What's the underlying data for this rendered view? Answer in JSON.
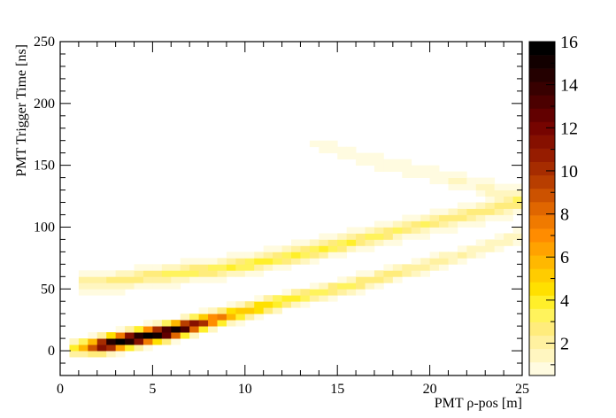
{
  "chart_data": {
    "type": "heatmap",
    "xlabel": "PMT ρ-pos [m]",
    "ylabel": "PMT Trigger Time [ns]",
    "xlim": [
      0,
      25
    ],
    "ylim": [
      -20,
      250
    ],
    "x_ticks": [
      "0",
      "5",
      "10",
      "15",
      "20",
      "25"
    ],
    "y_ticks": [
      "0",
      "50",
      "100",
      "150",
      "200",
      "250"
    ],
    "grid": false,
    "bin_size": {
      "x": 0.5,
      "y": 5
    },
    "colorbar": {
      "range": [
        0.5,
        16
      ],
      "ticks": [
        "2",
        "4",
        "6",
        "8",
        "10",
        "12",
        "14",
        "16"
      ],
      "palette": [
        "#fffbe0",
        "#fff6c0",
        "#fff1a0",
        "#ffec7c",
        "#fff35c",
        "#ffef2a",
        "#ffe000",
        "#ffcc00",
        "#ffb800",
        "#ffa200",
        "#ff8c00",
        "#f07a00",
        "#e06600",
        "#cc5200",
        "#b83e00",
        "#a62c00",
        "#961c00",
        "#861000",
        "#760400",
        "#620000",
        "#4c0000",
        "#380000",
        "#240000",
        "#120000",
        "#000000"
      ]
    },
    "bands": [
      {
        "name": "lower",
        "points": [
          [
            0.5,
            2
          ],
          [
            2,
            4
          ],
          [
            4,
            10
          ],
          [
            6,
            16
          ],
          [
            8,
            24
          ],
          [
            10,
            32
          ],
          [
            12,
            40
          ],
          [
            14,
            47
          ],
          [
            16,
            54
          ],
          [
            18,
            62
          ],
          [
            20,
            70
          ],
          [
            22,
            79
          ],
          [
            24,
            88
          ],
          [
            25,
            94
          ]
        ],
        "sigma": 4,
        "peak": [
          [
            0.5,
            3
          ],
          [
            1.5,
            7
          ],
          [
            2.5,
            15
          ],
          [
            3.5,
            16
          ],
          [
            4.5,
            16
          ],
          [
            5.5,
            16
          ],
          [
            6.5,
            15
          ],
          [
            7.5,
            11
          ],
          [
            8.5,
            8
          ],
          [
            9.5,
            6
          ],
          [
            11,
            5
          ],
          [
            13,
            3.5
          ],
          [
            16,
            3
          ],
          [
            20,
            2
          ],
          [
            25,
            1.5
          ]
        ]
      },
      {
        "name": "upper",
        "points": [
          [
            1,
            56
          ],
          [
            3,
            57
          ],
          [
            5,
            61
          ],
          [
            7,
            64
          ],
          [
            9,
            67
          ],
          [
            11,
            72
          ],
          [
            13,
            78
          ],
          [
            15,
            85
          ],
          [
            17,
            93
          ],
          [
            19,
            100
          ],
          [
            21,
            107
          ],
          [
            23,
            113
          ],
          [
            25,
            120
          ]
        ],
        "sigma": 3.5,
        "peak": [
          [
            1,
            1.4
          ],
          [
            3,
            1.8
          ],
          [
            6,
            2.4
          ],
          [
            9,
            2.8
          ],
          [
            12,
            3
          ],
          [
            15,
            3
          ],
          [
            18,
            2.5
          ],
          [
            21,
            2.2
          ],
          [
            25,
            2
          ]
        ]
      },
      {
        "name": "halo",
        "points": [
          [
            1,
            52
          ],
          [
            5,
            58
          ],
          [
            10,
            70
          ],
          [
            15,
            86
          ],
          [
            20,
            102
          ],
          [
            25,
            118
          ]
        ],
        "sigma": 9,
        "peak": [
          [
            1,
            0.7
          ],
          [
            10,
            0.9
          ],
          [
            18,
            0.8
          ],
          [
            25,
            0.7
          ]
        ]
      },
      {
        "name": "reflected",
        "points": [
          [
            13.5,
            168
          ],
          [
            16,
            158
          ],
          [
            18,
            150
          ],
          [
            20,
            143
          ],
          [
            22,
            136
          ],
          [
            24,
            128
          ],
          [
            25,
            124
          ]
        ],
        "sigma": 5,
        "peak": [
          [
            13.5,
            0.6
          ],
          [
            16,
            0.9
          ],
          [
            20,
            1.1
          ],
          [
            25,
            1.3
          ]
        ]
      }
    ]
  }
}
